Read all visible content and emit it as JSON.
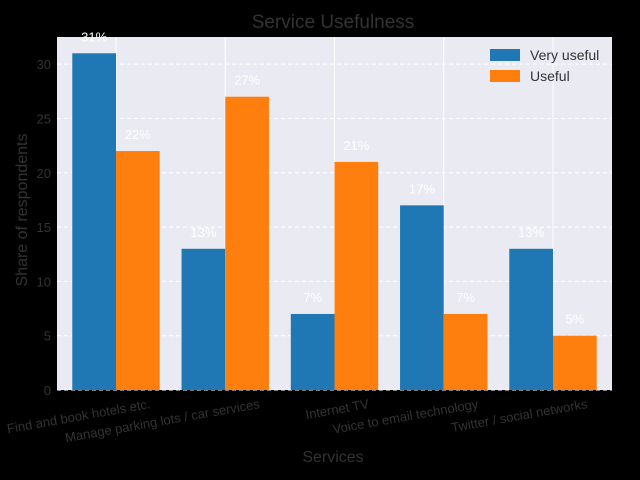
{
  "chart_data": {
    "type": "bar",
    "title": "Service Usefulness",
    "xlabel": "Services",
    "ylabel": "Share of respondents",
    "categories": [
      "Find and book hotels etc.",
      "Manage parking lots / car services",
      "Internet TV",
      "Voice to email technology",
      "Twitter / social networks"
    ],
    "series": [
      {
        "name": "Very useful",
        "values": [
          31,
          13,
          7,
          17,
          13
        ],
        "color": "#1f77b4"
      },
      {
        "name": "Useful",
        "values": [
          22,
          27,
          21,
          7,
          5
        ],
        "color": "#ff7f0e"
      }
    ],
    "data_labels": [
      [
        "31%",
        "13%",
        "7%",
        "17%",
        "13%"
      ],
      [
        "22%",
        "27%",
        "21%",
        "7%",
        "5%"
      ]
    ],
    "ylim": [
      0,
      32.5
    ],
    "yticks": [
      0,
      5,
      10,
      15,
      20,
      25,
      30
    ],
    "grid": true,
    "legend_position": "top-right",
    "colors": {
      "background": "#000000",
      "plot_background": "#eaeaf2",
      "grid": "#ffffff",
      "text": "#333333",
      "label_text": "#ffffff"
    }
  }
}
